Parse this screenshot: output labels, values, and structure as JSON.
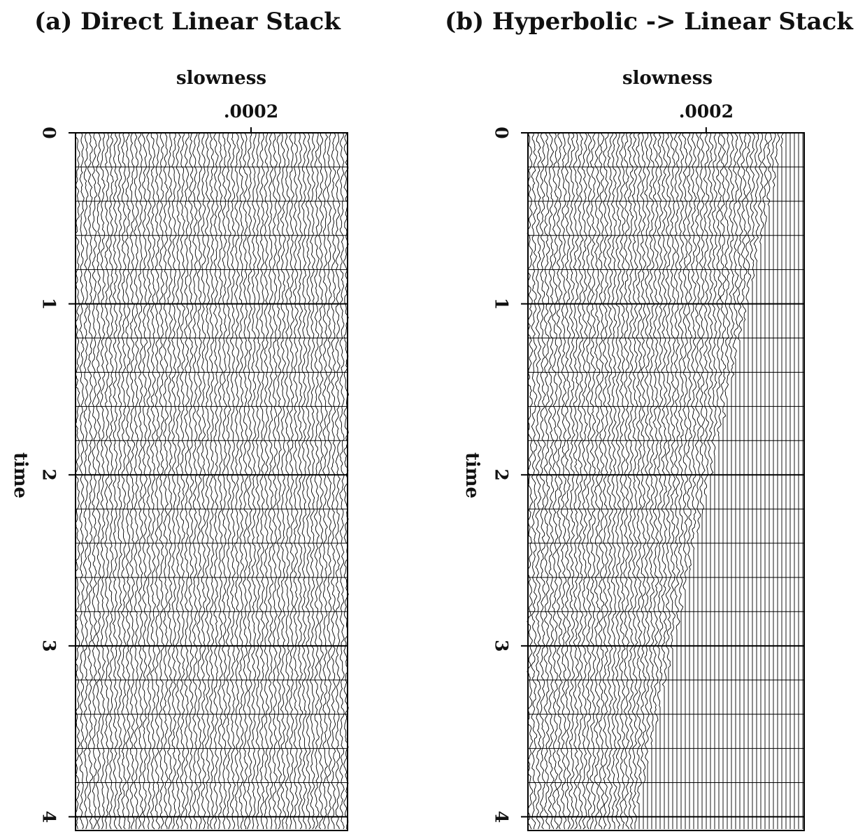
{
  "chart_data": [
    {
      "type": "wiggle",
      "title": "(a) Direct Linear Stack",
      "x_label": "slowness",
      "y_label": "time",
      "xlim": [
        0,
        0.00031
      ],
      "xticks": [
        {
          "value": 0.0002,
          "label": ".0002"
        }
      ],
      "ylim": [
        0,
        4.08
      ],
      "yticks": [
        0,
        1,
        2,
        3,
        4
      ],
      "color": "#000000"
    },
    {
      "type": "wiggle",
      "title": "(b) Hyperbolic -> Linear Stack",
      "x_label": "slowness",
      "y_label": "time",
      "xlim": [
        0,
        0.00031
      ],
      "xticks": [
        {
          "value": 0.0002,
          "label": ".0002"
        }
      ],
      "ylim": [
        0,
        4.08
      ],
      "yticks": [
        0,
        1,
        2,
        3,
        4
      ],
      "color": "#000000"
    }
  ]
}
